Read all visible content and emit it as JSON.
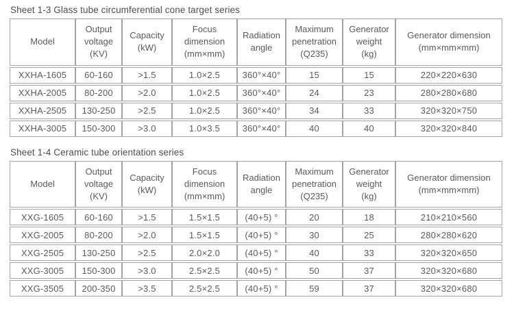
{
  "tables": [
    {
      "title": "Sheet 1-3 Glass tube circumferential cone target series",
      "headers": [
        "Model",
        "Output\nvoltage\n(KV)",
        "Capacity\n(kW)",
        "Focus\ndimension\n(mm×mm)",
        "Radiation\nangle",
        "Maximum\npenetration\n(Q235)",
        "Generator\nweight\n(kg)",
        "Generator dimension\n(mm×mm×mm)"
      ],
      "rows": [
        [
          "XXHA-1605",
          "60-160",
          ">1.5",
          "1.0×2.5",
          "360°×40°",
          "15",
          "15",
          "220×220×630"
        ],
        [
          "XXHA-2005",
          "80-200",
          ">2.0",
          "1.0×2.5",
          "360°×40°",
          "24",
          "23",
          "280×280×680"
        ],
        [
          "XXHA-2505",
          "130-250",
          ">2.5",
          "1.0×2.5",
          "360°×40°",
          "34",
          "33",
          "320×320×750"
        ],
        [
          "XXHA-3005",
          "150-300",
          ">3.0",
          "1.0×3.5",
          "360°×40°",
          "40",
          "40",
          "320×320×840"
        ]
      ]
    },
    {
      "title": "Sheet 1-4 Ceramic tube orientation series",
      "headers": [
        "Model",
        "Output\nvoltage\n(KV)",
        "Capacity\n(kW)",
        "Focus\ndimension\n(mm×mm)",
        "Radiation\nangle",
        "Maximum\npenetration\n(Q235)",
        "Generator\nweight\n(kg)",
        "Generator dimension\n(mm×mm×mm)"
      ],
      "rows": [
        [
          "XXG-1605",
          "60-160",
          ">1.5",
          "1.5×1.5",
          "(40+5) °",
          "20",
          "18",
          "210×210×560"
        ],
        [
          "XXG-2005",
          "80-200",
          ">2.0",
          "1.5×1.5",
          "(40+5) °",
          "30",
          "25",
          "280×280×620"
        ],
        [
          "XXG-2505",
          "130-250",
          ">2.5",
          "2.0×2.0",
          "(40+5) °",
          "40",
          "33",
          "320×320×650"
        ],
        [
          "XXG-3005",
          "150-300",
          ">3.0",
          "2.5×2.5",
          "(40+5) °",
          "50",
          "37",
          "320×320×680"
        ],
        [
          "XXG-3505",
          "200-350",
          ">3.5",
          "2.5×2.5",
          "(40+5) °",
          "59",
          "37",
          "320×320×680"
        ]
      ]
    }
  ],
  "colors": {
    "text": "#5a5a5c",
    "border": "#a2a2a2",
    "background": "#ffffff"
  }
}
